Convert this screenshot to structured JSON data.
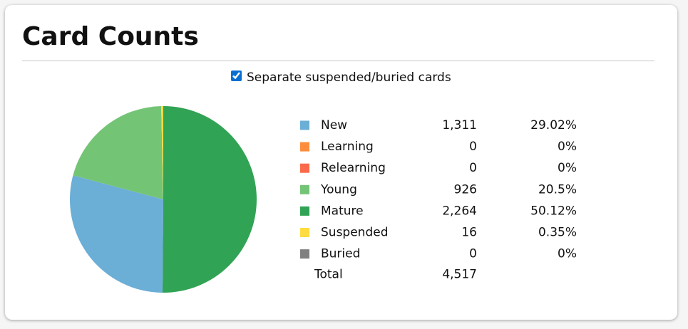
{
  "title": "Card Counts",
  "checkbox": {
    "label": "Separate suspended/buried cards",
    "checked": true
  },
  "chart_data": {
    "type": "pie",
    "categories": [
      "New",
      "Learning",
      "Relearning",
      "Young",
      "Mature",
      "Suspended",
      "Buried"
    ],
    "values": [
      1311,
      0,
      0,
      926,
      2264,
      16,
      0
    ],
    "value_labels": [
      "1,311",
      "0",
      "0",
      "926",
      "2,264",
      "16",
      "0"
    ],
    "colors": [
      "#6baed6",
      "#fd8d3c",
      "#fb6a4a",
      "#74c476",
      "#31a354",
      "#ffdc41",
      "#808080"
    ],
    "percents": [
      {
        "value": 29.02,
        "label": "29.02%"
      },
      {
        "value": 0,
        "label": "0%"
      },
      {
        "value": 0,
        "label": "0%"
      },
      {
        "value": 20.5,
        "label": "20.5%"
      },
      {
        "value": 50.12,
        "label": "50.12%"
      },
      {
        "value": 0.35,
        "label": "0.35%"
      },
      {
        "value": 0,
        "label": "0%"
      }
    ],
    "total_label": "Total",
    "total": {
      "value": 4517,
      "label": "4,517"
    }
  }
}
